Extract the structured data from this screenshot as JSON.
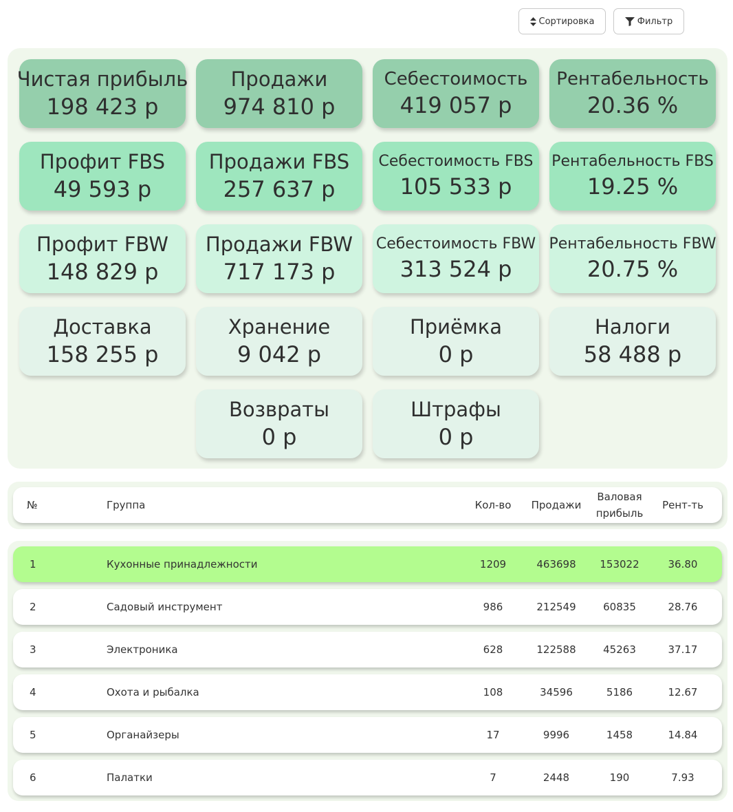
{
  "toolbar": {
    "sort_label": "Сортировка",
    "filter_label": "Фильтр"
  },
  "kpi": [
    {
      "title": "Чистая прибыль",
      "value": "198 423 р"
    },
    {
      "title": "Продажи",
      "value": "974 810 р"
    },
    {
      "title": "Себестоимость",
      "value": "419 057 р"
    },
    {
      "title": "Рентабельность",
      "value": "20.36 %"
    },
    {
      "title": "Профит FBS",
      "value": "49 593 р"
    },
    {
      "title": "Продажи FBS",
      "value": "257 637 р"
    },
    {
      "title": "Себестоимость FBS",
      "value": "105 533 р"
    },
    {
      "title": "Рентабельность FBS",
      "value": "19.25 %"
    },
    {
      "title": "Профит FBW",
      "value": "148 829 р"
    },
    {
      "title": "Продажи FBW",
      "value": "717 173 р"
    },
    {
      "title": "Себестоимость FBW",
      "value": "313 524 р"
    },
    {
      "title": "Рентабельность FBW",
      "value": "20.75 %"
    },
    {
      "title": "Доставка",
      "value": "158 255 р"
    },
    {
      "title": "Хранение",
      "value": "9 042 р"
    },
    {
      "title": "Приёмка",
      "value": "0 р"
    },
    {
      "title": "Налоги",
      "value": "58 488 р"
    },
    {
      "title": "Возвраты",
      "value": "0 р"
    },
    {
      "title": "Штрафы",
      "value": "0 р"
    }
  ],
  "table": {
    "headers": {
      "num": "№",
      "group": "Группа",
      "qty": "Кол-во",
      "sales": "Продажи",
      "gross_line1": "Валовая",
      "gross_line2": "прибыль",
      "rent": "Рент-ть"
    },
    "rows": [
      {
        "num": "1",
        "group": "Кухонные принадлежности",
        "qty": "1209",
        "sales": "463698",
        "gross": "153022",
        "rent": "36.80"
      },
      {
        "num": "2",
        "group": "Садовый инструмент",
        "qty": "986",
        "sales": "212549",
        "gross": "60835",
        "rent": "28.76"
      },
      {
        "num": "3",
        "group": "Электроника",
        "qty": "628",
        "sales": "122588",
        "gross": "45263",
        "rent": "37.17"
      },
      {
        "num": "4",
        "group": "Охота и рыбалка",
        "qty": "108",
        "sales": "34596",
        "gross": "5186",
        "rent": "12.67"
      },
      {
        "num": "5",
        "group": "Органайзеры",
        "qty": "17",
        "sales": "9996",
        "gross": "1458",
        "rent": "14.84"
      },
      {
        "num": "6",
        "group": "Палатки",
        "qty": "7",
        "sales": "2448",
        "gross": "190",
        "rent": "7.93"
      }
    ]
  },
  "colors": {
    "panel_bg": "#f0f7ec",
    "card_main": "#95cfac",
    "card_fbs": "#9ee6be",
    "card_fbw": "#cff4e0",
    "card_costs": "#e3f3ea",
    "row_highlight": "#b3fc8f"
  }
}
